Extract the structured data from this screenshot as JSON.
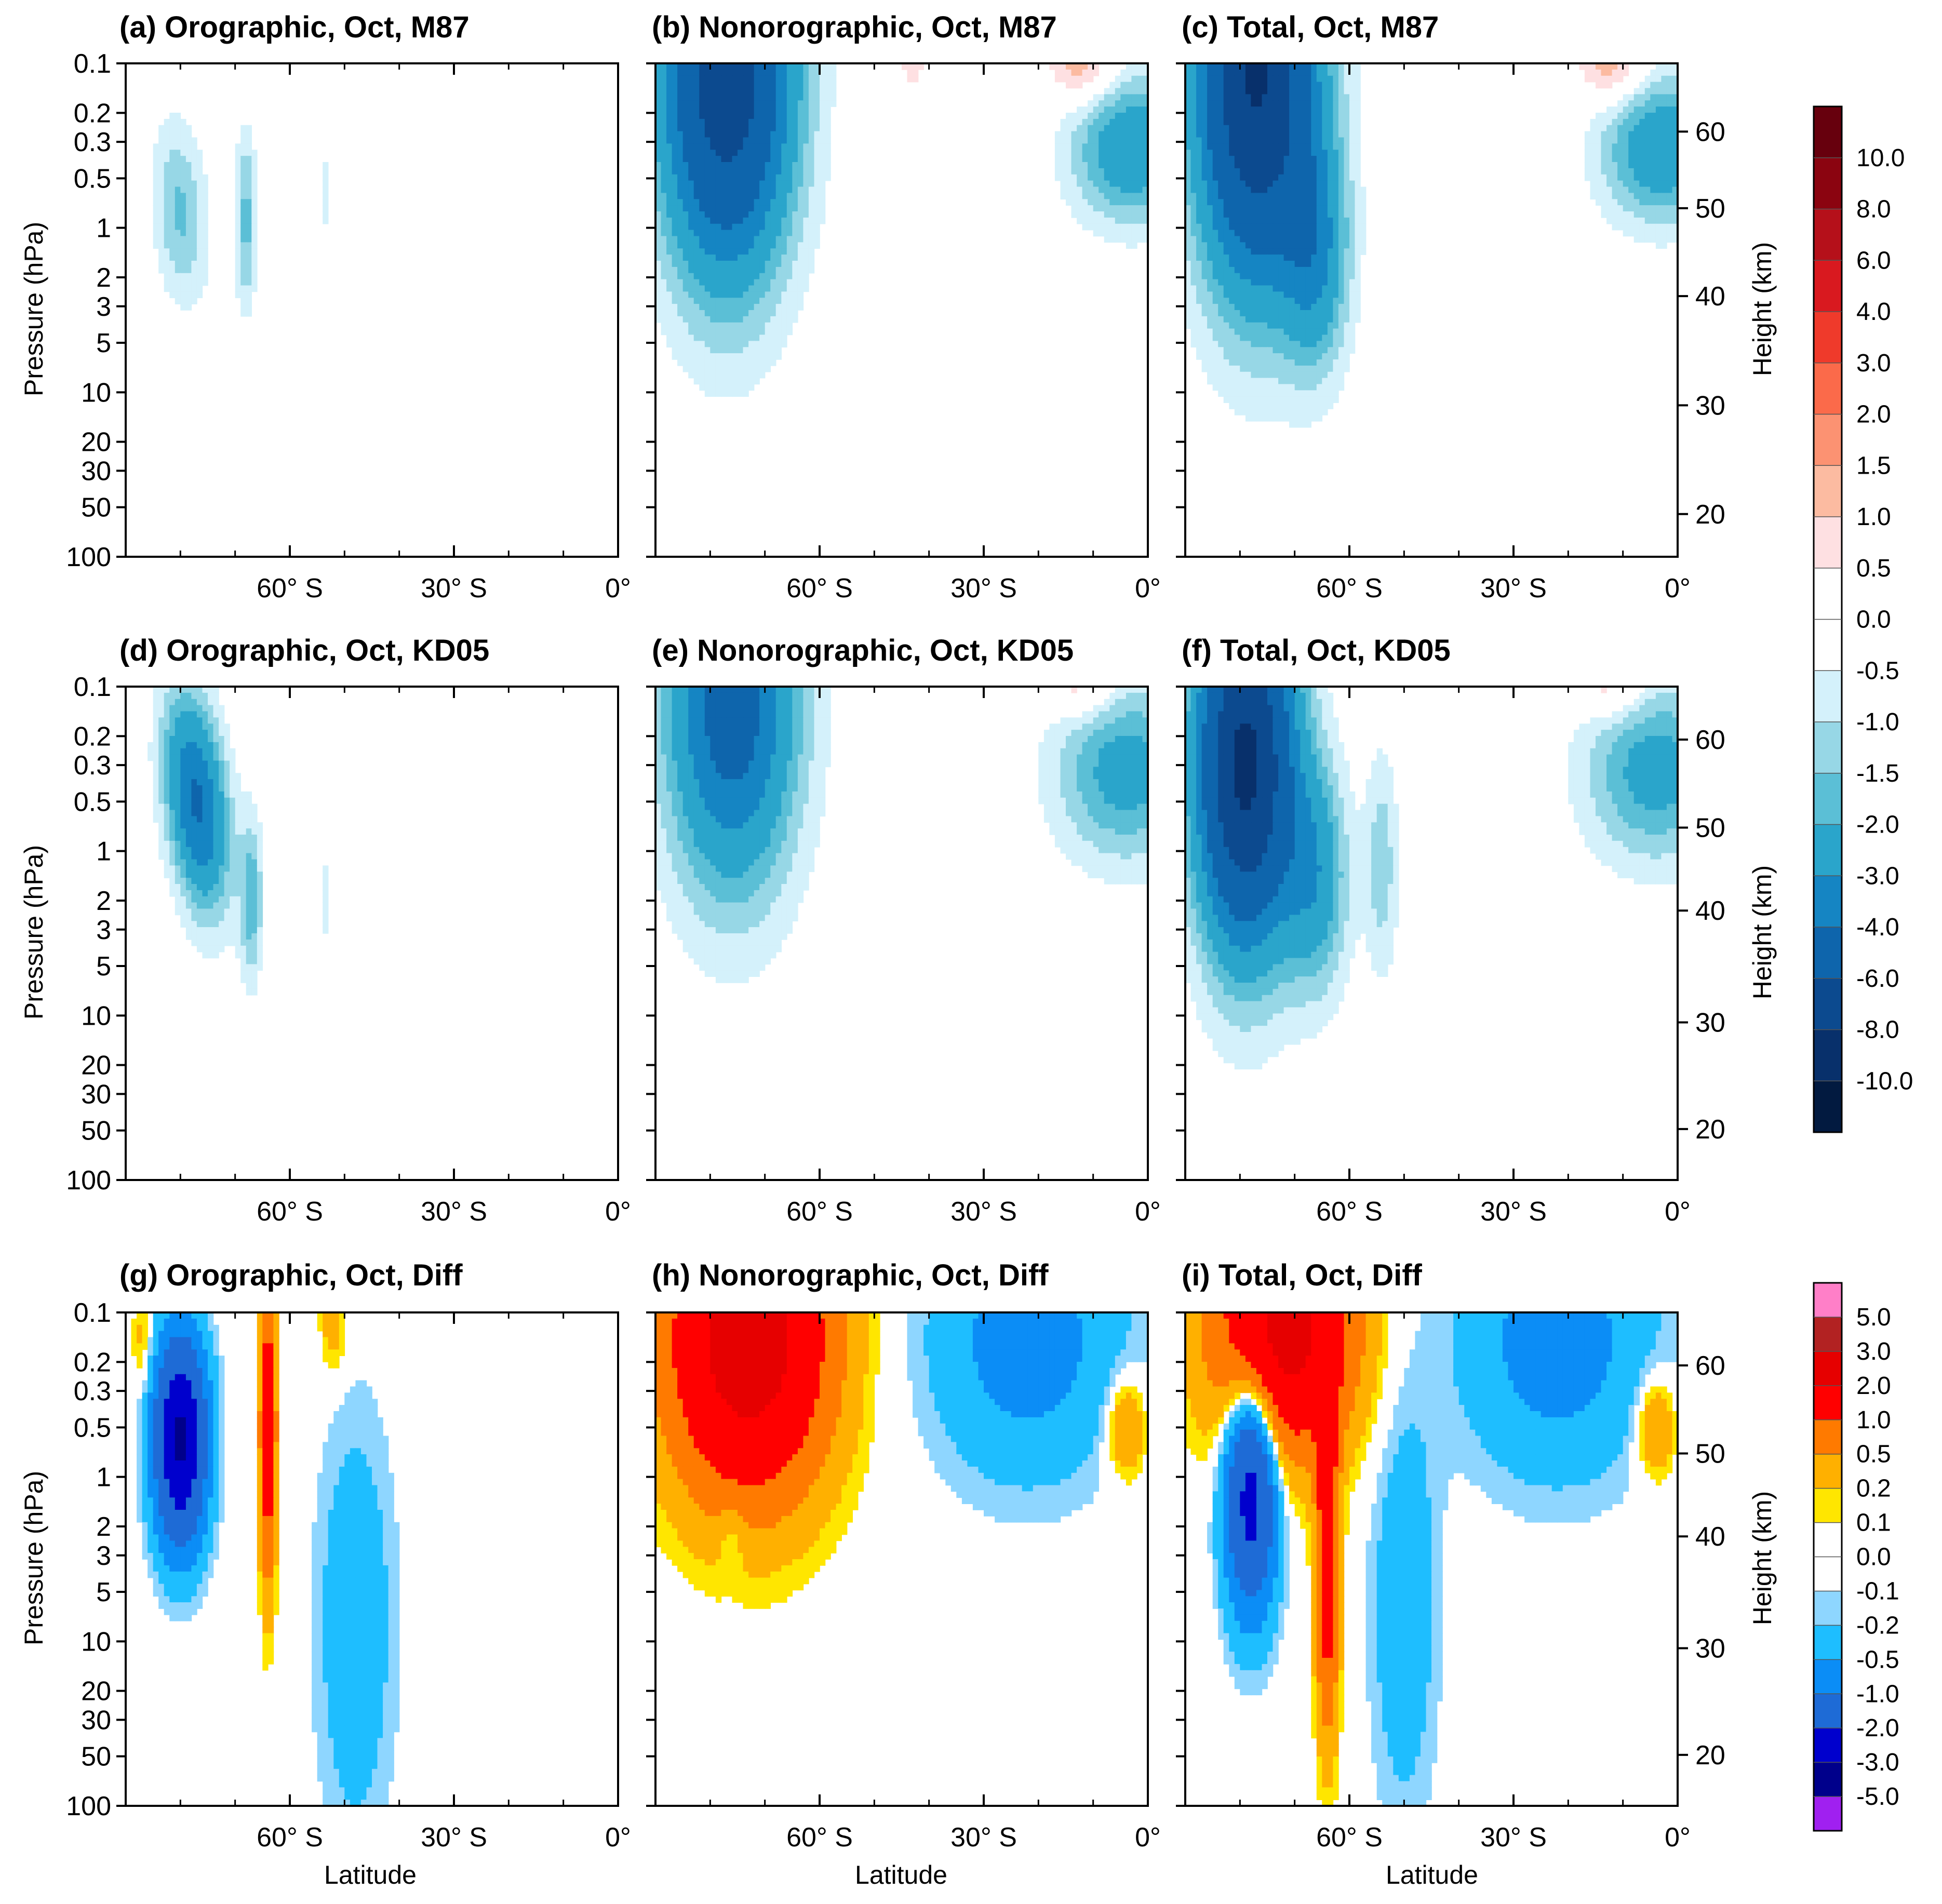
{
  "chart_data": {
    "type": "filled-contour",
    "x_axis": {
      "label": "Latitude",
      "range_deg": [
        -90,
        0
      ],
      "ticks": [
        {
          "v": -60,
          "label": "60° S"
        },
        {
          "v": -30,
          "label": "30° S"
        },
        {
          "v": 0,
          "label": "0°"
        }
      ]
    },
    "y_axis": {
      "label": "Pressure (hPa)",
      "scale": "log",
      "range_hPa": [
        100,
        0.1
      ],
      "ticks": [
        0.1,
        0.2,
        0.3,
        0.5,
        1,
        2,
        3,
        5,
        10,
        20,
        30,
        50,
        100
      ],
      "tick_labels": [
        "0.1",
        "0.2",
        "0.3",
        "0.5",
        "1",
        "2",
        "3",
        "5",
        "10",
        "20",
        "30",
        "50",
        "100"
      ]
    },
    "height_axis": {
      "label": "Height (km)",
      "rows": [
        {
          "row": 0,
          "ticks": [
            {
              "km": 60,
              "hPa": 0.26
            },
            {
              "km": 50,
              "hPa": 0.76
            },
            {
              "km": 40,
              "hPa": 2.6
            },
            {
              "km": 30,
              "hPa": 12
            },
            {
              "km": 20,
              "hPa": 55
            }
          ]
        },
        {
          "row": 1,
          "ticks": [
            {
              "km": 60,
              "hPa": 0.21
            },
            {
              "km": 50,
              "hPa": 0.72
            },
            {
              "km": 40,
              "hPa": 2.3
            },
            {
              "km": 30,
              "hPa": 11
            },
            {
              "km": 20,
              "hPa": 49
            }
          ]
        },
        {
          "row": 2,
          "ticks": [
            {
              "km": 60,
              "hPa": 0.21
            },
            {
              "km": 50,
              "hPa": 0.72
            },
            {
              "km": 40,
              "hPa": 2.3
            },
            {
              "km": 30,
              "hPa": 11
            },
            {
              "km": 20,
              "hPa": 49
            }
          ]
        }
      ]
    },
    "colorbars": [
      {
        "name": "rows 1-2 (M87, KD05)",
        "levels": [
          "10.0",
          "8.0",
          "6.0",
          "4.0",
          "3.0",
          "2.0",
          "1.5",
          "1.0",
          "0.5",
          "0.0",
          "-0.5",
          "-1.0",
          "-1.5",
          "-2.0",
          "-3.0",
          "-4.0",
          "-6.0",
          "-8.0",
          "-10.0"
        ],
        "colors": [
          "#67000d",
          "#8b0410",
          "#b5101a",
          "#d9191f",
          "#ef3a2b",
          "#fb6a4a",
          "#fc9272",
          "#fcbba1",
          "#fee0e2",
          "#ffffff",
          "#ffffff",
          "#d4f1fb",
          "#97d7e6",
          "#5bbfd6",
          "#2aa5cb",
          "#1585c3",
          "#0e65ac",
          "#0c4a8f",
          "#08306b",
          "#021a40"
        ]
      },
      {
        "name": "row 3 (Diff)",
        "levels": [
          "5.0",
          "3.0",
          "2.0",
          "1.0",
          "0.5",
          "0.2",
          "0.1",
          "0.0",
          "-0.1",
          "-0.2",
          "-0.5",
          "-1.0",
          "-2.0",
          "-3.0",
          "-5.0"
        ],
        "colors": [
          "#ff7fc8",
          "#b22222",
          "#e60000",
          "#ff0000",
          "#ff7a00",
          "#ffb000",
          "#ffe600",
          "#ffffff",
          "#ffffff",
          "#8ed6ff",
          "#1ebeff",
          "#0b8df6",
          "#1e6bd6",
          "#0000cd",
          "#00008b",
          "#a020f0"
        ]
      }
    ],
    "panels": [
      {
        "id": "a",
        "title": "(a) Orographic, Oct, M87",
        "scale": 0,
        "blobs": [
          {
            "lat": -80,
            "p": 0.8,
            "sx": 5,
            "sy": 0.55,
            "v": -1.6,
            "skew": 0.03
          },
          {
            "lat": -68,
            "p": 0.9,
            "sx": 2,
            "sy": 0.55,
            "v": -1.7
          },
          {
            "lat": -53.5,
            "p": 0.6,
            "sx": 0.8,
            "sy": 0.45,
            "v": -0.6
          }
        ]
      },
      {
        "id": "b",
        "title": "(b) Nonorographic, Oct, M87",
        "scale": 0,
        "blobs": [
          {
            "lat": -77,
            "p": 0.12,
            "sx": 12,
            "sy": 1.2,
            "v": -7.2
          },
          {
            "lat": -3,
            "p": 0.33,
            "sx": 11,
            "sy": 0.45,
            "v": -2.8
          },
          {
            "lat": -12,
            "p": 0.1,
            "sx": 6,
            "sy": 0.25,
            "v": 1.6
          },
          {
            "lat": -43,
            "p": 0.1,
            "sx": 2,
            "sy": 0.15,
            "v": 0.9
          }
        ]
      },
      {
        "id": "c",
        "title": "(c) Total, Oct, M87",
        "scale": 0,
        "blobs": [
          {
            "lat": -77,
            "p": 0.12,
            "sx": 11,
            "sy": 1.25,
            "v": -8.2
          },
          {
            "lat": -66,
            "p": 1.5,
            "sx": 6,
            "sy": 0.7,
            "v": -2.5
          },
          {
            "lat": -3,
            "p": 0.33,
            "sx": 11,
            "sy": 0.45,
            "v": -2.8
          },
          {
            "lat": -12,
            "p": 0.1,
            "sx": 6,
            "sy": 0.25,
            "v": 1.6
          }
        ]
      },
      {
        "id": "d",
        "title": "(d) Orographic, Oct, KD05",
        "scale": 0,
        "blobs": [
          {
            "lat": -77,
            "p": 0.5,
            "sx": 5.5,
            "sy": 0.65,
            "v": -4.2,
            "skew": 0.05
          },
          {
            "lat": -67,
            "p": 2,
            "sx": 2,
            "sy": 0.5,
            "v": -1.8
          },
          {
            "lat": -53.5,
            "p": 2,
            "sx": 0.8,
            "sy": 0.5,
            "v": -0.6
          }
        ]
      },
      {
        "id": "e",
        "title": "(e) Nonorographic, Oct, KD05",
        "scale": 0,
        "blobs": [
          {
            "lat": -76,
            "p": 0.12,
            "sx": 12,
            "sy": 1.15,
            "v": -4.8
          },
          {
            "lat": -4,
            "p": 0.33,
            "sx": 13,
            "sy": 0.55,
            "v": -2.4
          },
          {
            "lat": -12,
            "p": 0.1,
            "sx": 6,
            "sy": 0.2,
            "v": 1.2
          }
        ]
      },
      {
        "id": "f",
        "title": "(f) Total, Oct, KD05",
        "scale": 0,
        "blobs": [
          {
            "lat": -79,
            "p": 0.3,
            "sx": 9,
            "sy": 1.1,
            "v": -8.5
          },
          {
            "lat": -66,
            "p": 1.5,
            "sx": 6,
            "sy": 0.7,
            "v": -2.4
          },
          {
            "lat": -54,
            "p": 1.2,
            "sx": 3,
            "sy": 0.7,
            "v": -1.3
          },
          {
            "lat": -4,
            "p": 0.33,
            "sx": 13,
            "sy": 0.55,
            "v": -2.4
          },
          {
            "lat": -12,
            "p": 0.1,
            "sx": 6,
            "sy": 0.2,
            "v": 1.2
          }
        ]
      },
      {
        "id": "g",
        "title": "(g) Orographic, Oct, Diff",
        "scale": 1,
        "blobs": [
          {
            "lat": -80,
            "p": 0.6,
            "sx": 4.5,
            "sy": 0.6,
            "v": -3.2
          },
          {
            "lat": -64,
            "p": 0.5,
            "sx": 1.4,
            "sy": 0.9,
            "v": 1.6
          },
          {
            "lat": -52,
            "p": 0.12,
            "sx": 2.5,
            "sy": 0.3,
            "v": 0.35
          },
          {
            "lat": -87,
            "p": 0.15,
            "sx": 1.8,
            "sy": 0.3,
            "v": 0.3
          },
          {
            "lat": -48,
            "p": 8,
            "sx": 7,
            "sy": 1.3,
            "v": -0.4
          }
        ]
      },
      {
        "id": "h",
        "title": "(h) Nonorographic, Oct, Diff",
        "scale": 1,
        "blobs": [
          {
            "lat": -73,
            "p": 0.15,
            "sx": 14,
            "sy": 0.9,
            "v": 2.6
          },
          {
            "lat": -22,
            "p": 0.15,
            "sx": 17,
            "sy": 0.8,
            "v": -0.7
          },
          {
            "lat": -4,
            "p": 0.5,
            "sx": 3.5,
            "sy": 0.3,
            "v": 0.6
          },
          {
            "lat": -76,
            "p": 2.2,
            "sx": 2.5,
            "sy": 0.25,
            "v": -0.25
          }
        ]
      },
      {
        "id": "i",
        "title": "(i) Total, Oct, Diff",
        "scale": 1,
        "blobs": [
          {
            "lat": -72,
            "p": 0.13,
            "sx": 12,
            "sy": 0.7,
            "v": 2.4
          },
          {
            "lat": -78,
            "p": 1.2,
            "sx": 4.5,
            "sy": 0.7,
            "v": -2.5
          },
          {
            "lat": -64,
            "p": 3,
            "sx": 2,
            "sy": 1,
            "v": 1.6
          },
          {
            "lat": -50,
            "p": 6,
            "sx": 6,
            "sy": 1.3,
            "v": -0.4
          },
          {
            "lat": -22,
            "p": 0.15,
            "sx": 17,
            "sy": 0.8,
            "v": -0.7
          },
          {
            "lat": -4,
            "p": 0.5,
            "sx": 3.5,
            "sy": 0.3,
            "v": 0.6
          }
        ]
      }
    ]
  }
}
